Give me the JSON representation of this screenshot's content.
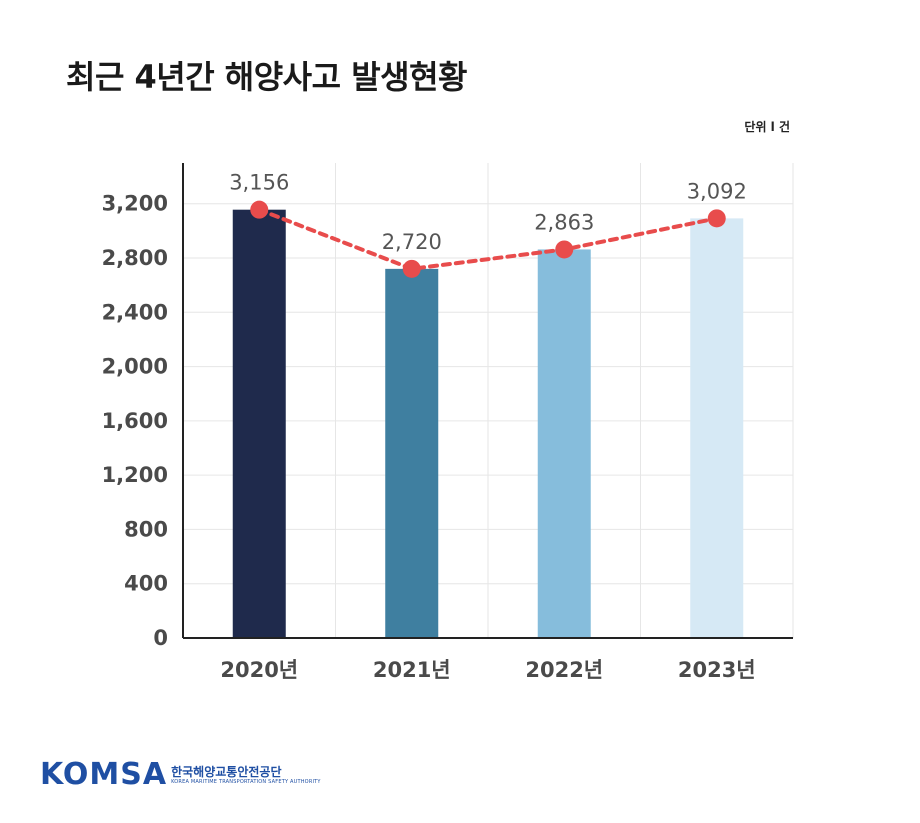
{
  "title": "최근 4년간 해양사고 발생현황",
  "unit_label": "단위 l 건",
  "chart_data": {
    "type": "bar",
    "categories": [
      "2020년",
      "2021년",
      "2022년",
      "2023년"
    ],
    "values": [
      3156,
      2720,
      2863,
      3092
    ],
    "data_labels": [
      "3,156",
      "2,720",
      "2,863",
      "3,092"
    ],
    "bar_colors": [
      "#1f2a4c",
      "#3f7fa0",
      "#86bddc",
      "#d6e9f5"
    ],
    "line_overlay": {
      "style": "dotted",
      "color": "#e84c4c",
      "values": [
        3156,
        2720,
        2863,
        3092
      ]
    },
    "yticks": [
      0,
      400,
      800,
      1200,
      1600,
      2000,
      2400,
      2800,
      3200
    ],
    "ytick_labels": [
      "0",
      "400",
      "800",
      "1,200",
      "1,600",
      "2,000",
      "2,400",
      "2,800",
      "3,200"
    ],
    "ylim": [
      0,
      3500
    ],
    "grid": true
  },
  "logo": {
    "word": "KOMSA",
    "korean": "한국해양교통안전공단",
    "english": "KOREA MARITIME TRANSPORTATION SAFETY AUTHORITY"
  }
}
